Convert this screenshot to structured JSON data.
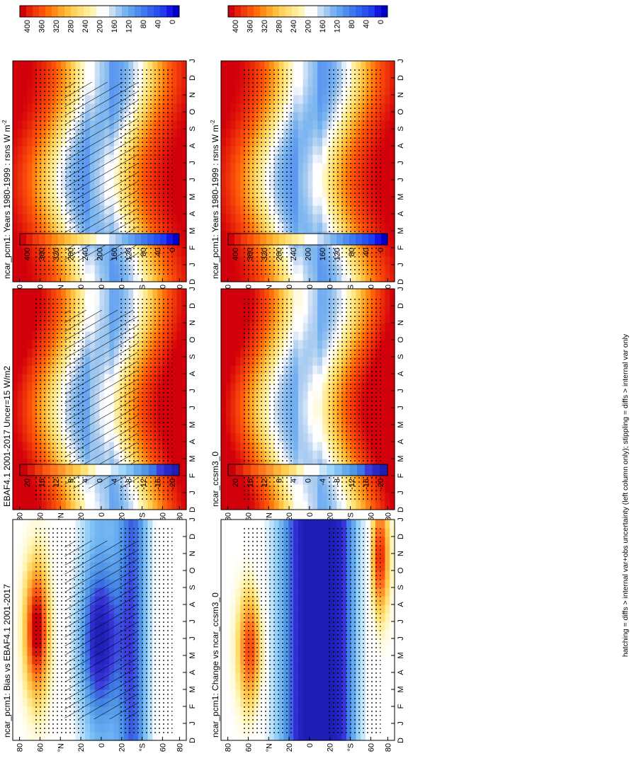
{
  "footer_note": "hatching = diffs > internal var+obs uncertainty (left column only); stippling = diffs > internal var only",
  "colors": {
    "abs_scale": [
      "#0000c8",
      "#1414e6",
      "#1e3cf0",
      "#2850f0",
      "#3264f0",
      "#3c78f0",
      "#508cf0",
      "#64a0f0",
      "#78b4f0",
      "#a0c8f0",
      "#c8dcf5",
      "#ffffff",
      "#ffffff",
      "#fff5b4",
      "#ffeb96",
      "#ffe178",
      "#ffd25a",
      "#ffbe3c",
      "#ffa528",
      "#ff8c14",
      "#ff6e0a",
      "#ff500a",
      "#f03c0a",
      "#e61e0a",
      "#d2000a"
    ],
    "diff_scale": [
      "#1e1eb4",
      "#2828c8",
      "#3c3cdc",
      "#3c78e6",
      "#5096e6",
      "#64aaf0",
      "#82c3f5",
      "#a0d7fa",
      "#c8e6fa",
      "#ffffff",
      "#ffffff",
      "#fff5b4",
      "#ffe178",
      "#ffcd50",
      "#ffb43c",
      "#ff962d",
      "#ff781e",
      "#ff5a14",
      "#f03c0a",
      "#dc1e0a",
      "#c8000a"
    ]
  },
  "chart_data": [
    {
      "type": "heatmap",
      "title": "ncar_pcm1: Years 1980-1999 : rsns W m",
      "title_suffix": "-2",
      "variable": "rsns",
      "units": "W m-2",
      "months": [
        "J",
        "F",
        "M",
        "A",
        "M",
        "J",
        "J",
        "A",
        "S",
        "O",
        "N",
        "D",
        "J"
      ],
      "month_label_end": "D",
      "latitude_labels": [
        "80",
        "60",
        "°N",
        "20",
        "0",
        "20",
        "°S",
        "60",
        "80"
      ],
      "colorbar_ticks": [
        "400",
        "360",
        "320",
        "280",
        "240",
        "200",
        "160",
        "120",
        "80",
        "40",
        "0"
      ],
      "range": [
        0,
        400
      ],
      "hatching": true,
      "stippling": true
    },
    {
      "type": "heatmap",
      "title": "ncar_pcm1: Years 1980-1999 : rsns W m",
      "title_suffix": "-2",
      "variable": "rsns",
      "units": "W m-2",
      "months": [
        "J",
        "F",
        "M",
        "A",
        "M",
        "J",
        "J",
        "A",
        "S",
        "O",
        "N",
        "D",
        "J"
      ],
      "month_label_end": "D",
      "latitude_labels": [
        "80",
        "60",
        "°N",
        "20",
        "0",
        "20",
        "°S",
        "60",
        "80"
      ],
      "colorbar_ticks": [
        "400",
        "360",
        "320",
        "280",
        "240",
        "200",
        "160",
        "120",
        "80",
        "40",
        "0"
      ],
      "range": [
        0,
        400
      ],
      "hatching": false,
      "stippling": true
    },
    {
      "type": "heatmap",
      "title": "EBAF4.1 2001-2017 Uncer=15 W/m2",
      "title_suffix": "",
      "variable": "rsns",
      "units": "W/m2",
      "months": [
        "J",
        "F",
        "M",
        "A",
        "M",
        "J",
        "J",
        "A",
        "S",
        "O",
        "N",
        "D",
        "J"
      ],
      "month_label_end": "D",
      "latitude_labels": [
        "80",
        "60",
        "°N",
        "20",
        "0",
        "20",
        "°S",
        "60",
        "80"
      ],
      "colorbar_ticks": [
        "400",
        "360",
        "320",
        "280",
        "240",
        "200",
        "160",
        "120",
        "80",
        "40",
        "0"
      ],
      "range": [
        0,
        400
      ],
      "hatching": true,
      "stippling": true
    },
    {
      "type": "heatmap",
      "title": "ncar_ccsm3_0",
      "title_suffix": "",
      "variable": "rsns",
      "units": "W m-2",
      "months": [
        "J",
        "F",
        "M",
        "A",
        "M",
        "J",
        "J",
        "A",
        "S",
        "O",
        "N",
        "D",
        "J"
      ],
      "month_label_end": "D",
      "latitude_labels": [
        "80",
        "60",
        "°N",
        "20",
        "0",
        "20",
        "°S",
        "60",
        "80"
      ],
      "colorbar_ticks": [
        "400",
        "360",
        "320",
        "280",
        "240",
        "200",
        "160",
        "120",
        "80",
        "40",
        "0"
      ],
      "range": [
        0,
        400
      ],
      "hatching": false,
      "stippling": true
    },
    {
      "type": "heatmap",
      "title": "ncar_pcm1: Bias vs EBAF4.1 2001-2017",
      "title_suffix": "",
      "variable": "rsns bias",
      "units": "W m-2",
      "months": [
        "J",
        "F",
        "M",
        "A",
        "M",
        "J",
        "J",
        "A",
        "S",
        "O",
        "N",
        "D",
        "J"
      ],
      "month_label_end": "D",
      "latitude_labels": [
        "80",
        "60",
        "°N",
        "20",
        "0",
        "20",
        "°S",
        "60",
        "80"
      ],
      "colorbar_ticks": [
        "20",
        "16",
        "12",
        "8",
        "4",
        "0",
        "-4",
        "-8",
        "-12",
        "-16",
        "-20"
      ],
      "range": [
        -20,
        20
      ],
      "hatching": true,
      "stippling": true
    },
    {
      "type": "heatmap",
      "title": "ncar_pcm1: Change vs ncar_ccsm3_0",
      "title_suffix": "",
      "variable": "rsns change",
      "units": "W m-2",
      "months": [
        "J",
        "F",
        "M",
        "A",
        "M",
        "J",
        "J",
        "A",
        "S",
        "O",
        "N",
        "D",
        "J"
      ],
      "month_label_end": "D",
      "latitude_labels": [
        "80",
        "60",
        "°N",
        "20",
        "0",
        "20",
        "°S",
        "60",
        "80"
      ],
      "colorbar_ticks": [
        "20",
        "16",
        "12",
        "8",
        "4",
        "0",
        "-4",
        "-8",
        "-12",
        "-16",
        "-20"
      ],
      "range": [
        -20,
        20
      ],
      "hatching": false,
      "stippling": true
    }
  ]
}
